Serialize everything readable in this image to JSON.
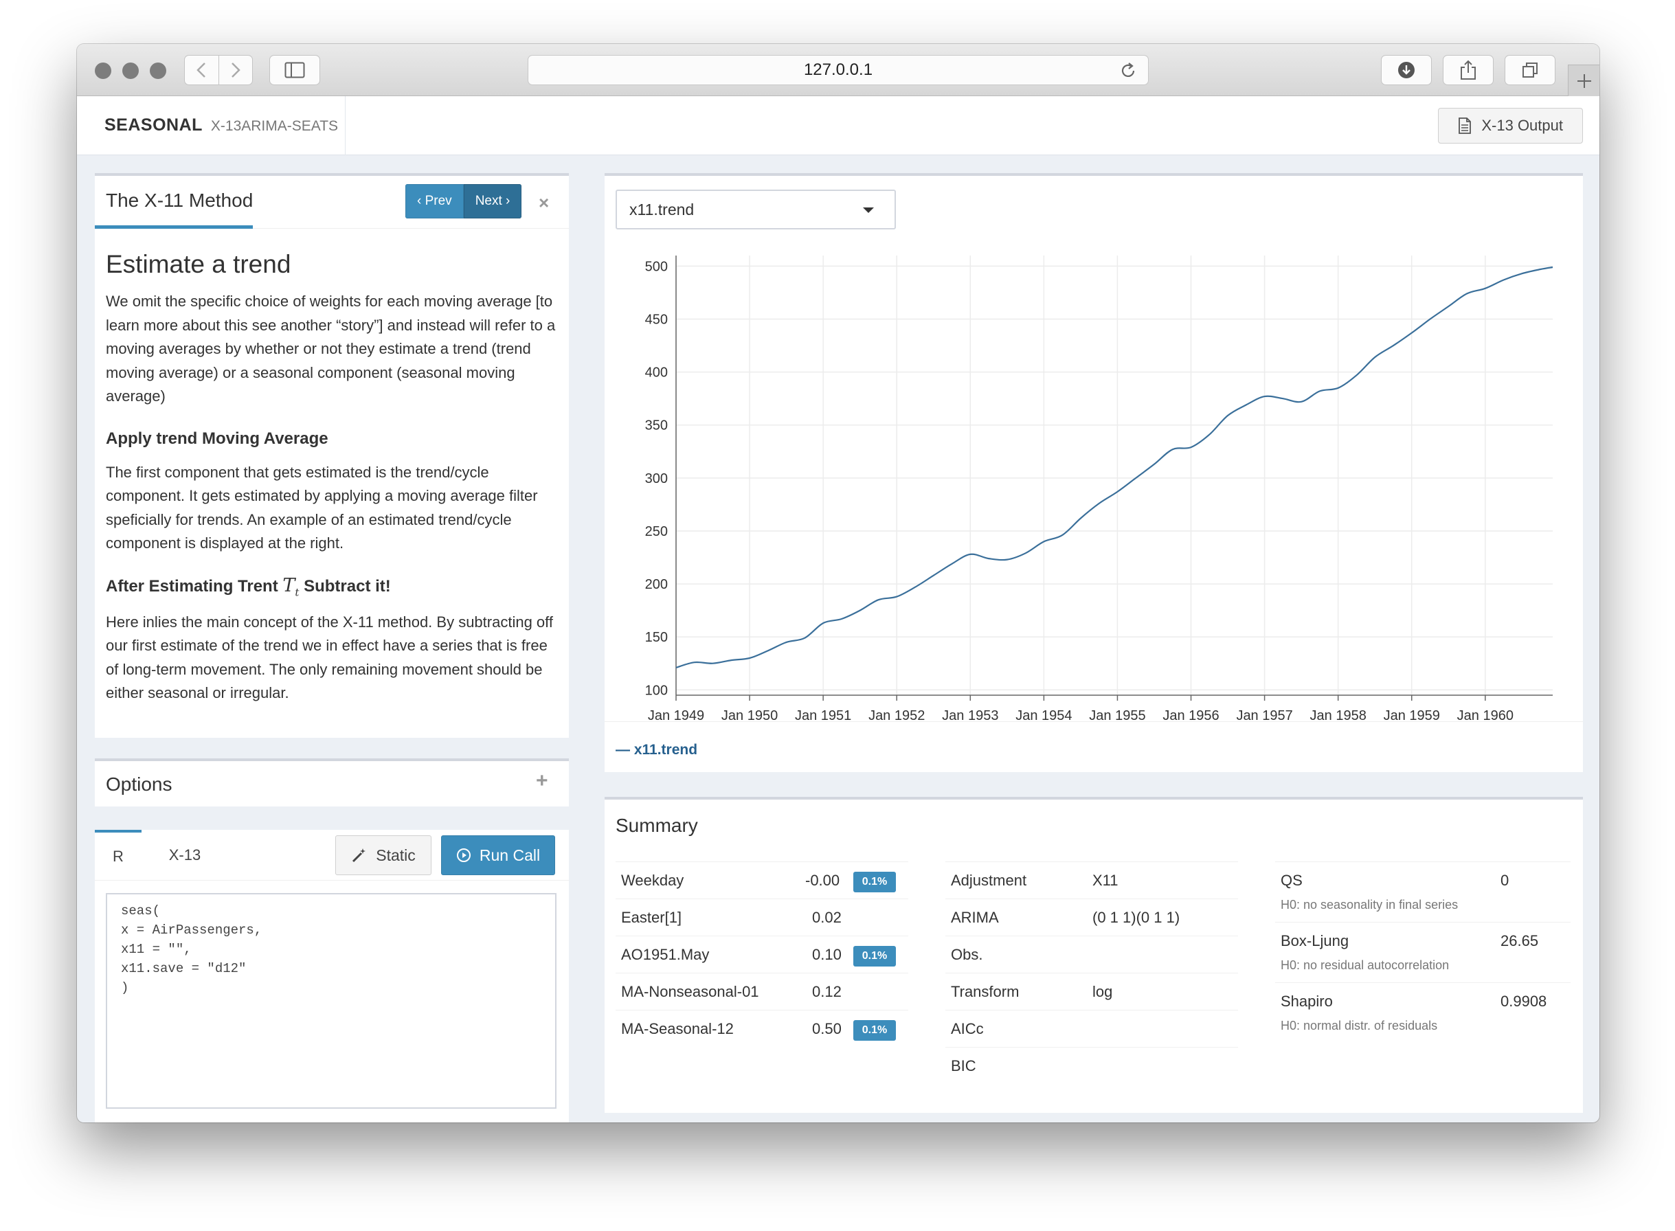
{
  "browser": {
    "url": "127.0.0.1",
    "icons": [
      "back-icon",
      "forward-icon",
      "sidebar-icon",
      "reload-icon",
      "download-icon",
      "share-icon",
      "tabs-icon",
      "new-tab-icon"
    ]
  },
  "header": {
    "brand": "SEASONAL",
    "subtitle": "X-13ARIMA-SEATS",
    "output_button": "X-13 Output"
  },
  "story": {
    "title": "The X-11 Method",
    "prev_label": "‹ Prev",
    "next_label": "Next ›",
    "close": "×",
    "heading": "Estimate a trend",
    "para1": "We omit the specific choice of weights for each moving average [to learn more about this see another “story”] and instead will refer to a moving averages by whether or not they estimate a trend (trend moving average) or a seasonal component (seasonal moving average)",
    "sub1": "Apply trend Moving Average",
    "para2": "The first component that gets estimated is the trend/cycle component. It gets estimated by applying a moving average filter speficially for trends. An example of an estimated trend/cycle component is displayed at the right.",
    "sub2_pre": "After Estimating Trent",
    "sub2_math": "T",
    "sub2_math_sub": "t",
    "sub2_post": "Subtract it!",
    "para3": "Here inlies the main concept of the X-11 method. By subtracting off our first estimate of the trend we in effect have a series that is free of long-term movement. The only remaining movement should be either seasonal or irregular."
  },
  "options": {
    "title": "Options",
    "expand": "+"
  },
  "call": {
    "tabs": [
      "R",
      "X-13"
    ],
    "static_label": "Static",
    "run_label": "Run Call",
    "code": "seas(\nx = AirPassengers,\nx11 = \"\",\nx11.save = \"d12\"\n)"
  },
  "series_select": {
    "value": "x11.trend"
  },
  "chart_data": {
    "type": "line",
    "xlabel": "",
    "ylabel": "",
    "x_tick_labels": [
      "Jan 1949",
      "Jan 1950",
      "Jan 1951",
      "Jan 1952",
      "Jan 1953",
      "Jan 1954",
      "Jan 1955",
      "Jan 1956",
      "Jan 1957",
      "Jan 1958",
      "Jan 1959",
      "Jan 1960"
    ],
    "y_ticks": [
      100,
      150,
      200,
      250,
      300,
      350,
      400,
      450,
      500
    ],
    "ylim": [
      95,
      510
    ],
    "xlim": [
      1949.0,
      1960.917
    ],
    "grid": true,
    "legend": "bottom-left",
    "series": [
      {
        "name": "x11.trend",
        "color": "#3a6f9a",
        "x": [
          1949.0,
          1949.25,
          1949.5,
          1949.75,
          1950.0,
          1950.25,
          1950.5,
          1950.75,
          1951.0,
          1951.25,
          1951.5,
          1951.75,
          1952.0,
          1952.25,
          1952.5,
          1952.75,
          1953.0,
          1953.25,
          1953.5,
          1953.75,
          1954.0,
          1954.25,
          1954.5,
          1954.75,
          1955.0,
          1955.25,
          1955.5,
          1955.75,
          1956.0,
          1956.25,
          1956.5,
          1956.75,
          1957.0,
          1957.25,
          1957.5,
          1957.75,
          1958.0,
          1958.25,
          1958.5,
          1958.75,
          1959.0,
          1959.25,
          1959.5,
          1959.75,
          1960.0,
          1960.25,
          1960.5,
          1960.75,
          1960.917
        ],
        "values": [
          121,
          126,
          125,
          128,
          130,
          137,
          145,
          149,
          163,
          167,
          175,
          185,
          188,
          197,
          208,
          219,
          228,
          224,
          223,
          229,
          240,
          246,
          262,
          276,
          287,
          300,
          313,
          327,
          329,
          341,
          359,
          369,
          377,
          375,
          372,
          382,
          385,
          397,
          414,
          425,
          437,
          450,
          462,
          474,
          479,
          487,
          493,
          497,
          499
        ]
      }
    ]
  },
  "summary": {
    "title": "Summary",
    "coefficients": [
      {
        "label": "Weekday",
        "value": "-0.00",
        "badge": "0.1%"
      },
      {
        "label": "Easter[1]",
        "value": "0.02",
        "badge": ""
      },
      {
        "label": "AO1951.May",
        "value": "0.10",
        "badge": "0.1%"
      },
      {
        "label": "MA-Nonseasonal-01",
        "value": "0.12",
        "badge": ""
      },
      {
        "label": "MA-Seasonal-12",
        "value": "0.50",
        "badge": "0.1%"
      }
    ],
    "model": [
      {
        "label": "Adjustment",
        "value": "X11"
      },
      {
        "label": "ARIMA",
        "value": "(0 1 1)(0 1 1)"
      },
      {
        "label": "Obs.",
        "value": ""
      },
      {
        "label": "Transform",
        "value": "log"
      },
      {
        "label": "AICc",
        "value": ""
      },
      {
        "label": "BIC",
        "value": ""
      }
    ],
    "tests": [
      {
        "label": "QS",
        "value": "0",
        "note": "H0: no seasonality in final series"
      },
      {
        "label": "Box-Ljung",
        "value": "26.65",
        "note": "H0: no residual autocorrelation"
      },
      {
        "label": "Shapiro",
        "value": "0.9908",
        "note": "H0: normal distr. of residuals"
      }
    ]
  }
}
